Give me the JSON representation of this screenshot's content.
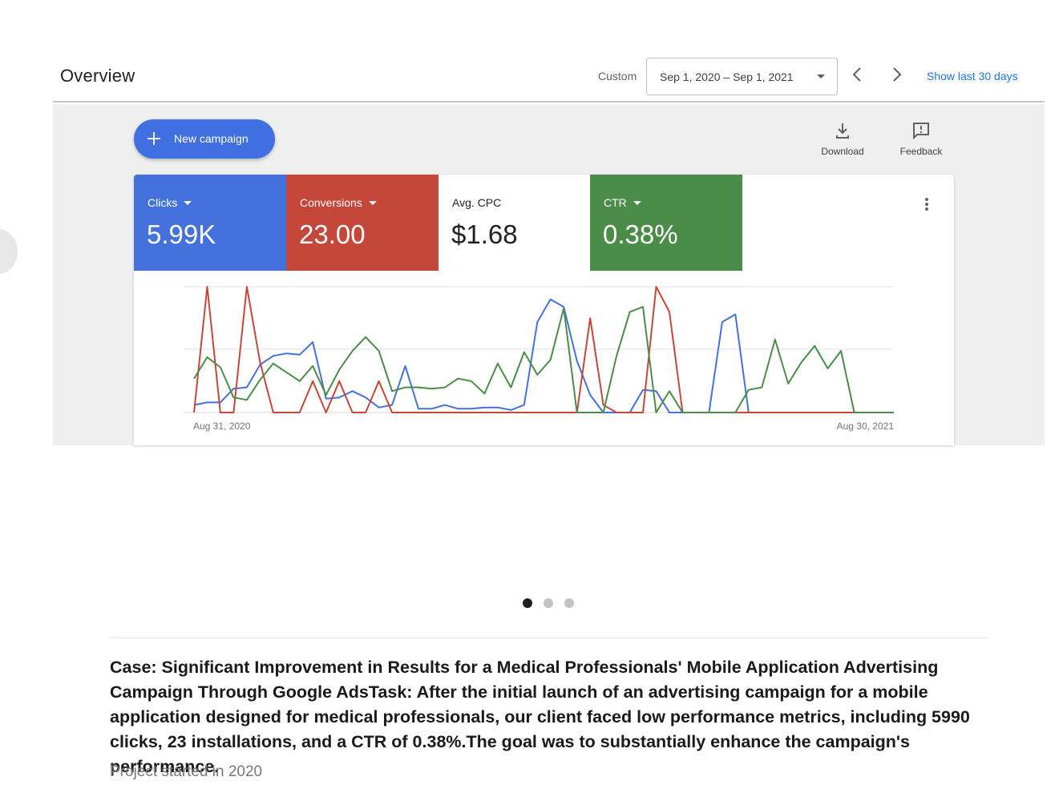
{
  "header": {
    "title": "Overview",
    "custom_label": "Custom",
    "date_range": "Sep 1, 2020 – Sep 1, 2021",
    "show_last_label": "Show last 30 days"
  },
  "toolbar": {
    "new_campaign_label": "New campaign",
    "download_label": "Download",
    "feedback_label": "Feedback"
  },
  "metrics": [
    {
      "label": "Clicks",
      "value": "5.99K",
      "color": "#4472dc"
    },
    {
      "label": "Conversions",
      "value": "23.00",
      "color": "#c5473a"
    },
    {
      "label": "Avg. CPC",
      "value": "$1.68",
      "color": "#ffffff"
    },
    {
      "label": "CTR",
      "value": "0.38%",
      "color": "#4a8c48"
    }
  ],
  "chart_data": {
    "type": "line",
    "x_start_label": "Aug 31, 2020",
    "x_end_label": "Aug 30, 2021",
    "y_range": [
      0,
      100
    ],
    "grid": "horizontal",
    "series": [
      {
        "color": "#4472dc",
        "values": [
          6,
          8,
          8,
          19,
          20,
          38,
          45,
          47,
          46,
          56,
          11,
          12,
          17,
          12,
          4,
          6,
          37,
          3,
          3,
          6,
          3,
          3,
          4,
          4,
          2,
          6,
          72,
          90,
          84,
          41,
          14,
          0,
          0,
          0,
          18,
          17,
          0,
          0,
          0,
          0,
          72,
          78,
          0,
          0,
          0,
          0,
          0,
          0,
          0,
          0,
          0,
          0,
          0,
          0
        ]
      },
      {
        "color": "#c5473a",
        "values": [
          0,
          100,
          0,
          0,
          100,
          40,
          0,
          0,
          0,
          25,
          0,
          25,
          0,
          0,
          25,
          0,
          0,
          0,
          0,
          0,
          0,
          0,
          0,
          0,
          0,
          0,
          0,
          0,
          0,
          0,
          75,
          6,
          0,
          0,
          0,
          100,
          80,
          0,
          0,
          0,
          0,
          0,
          0,
          0,
          0,
          0,
          0,
          0,
          0,
          0,
          0,
          0,
          0,
          0
        ]
      },
      {
        "color": "#4a8c48",
        "values": [
          27,
          44,
          36,
          12,
          10,
          26,
          39,
          32,
          25,
          37,
          14,
          34,
          49,
          60,
          49,
          17,
          20,
          20,
          19,
          20,
          27,
          25,
          15,
          39,
          20,
          48,
          30,
          42,
          83,
          0,
          0,
          0,
          45,
          80,
          84,
          0,
          17,
          0,
          0,
          0,
          0,
          0,
          18,
          20,
          58,
          23,
          40,
          53,
          35,
          49,
          0,
          0,
          0,
          0
        ]
      }
    ]
  },
  "pager": {
    "count": 3,
    "active_index": 0
  },
  "case": {
    "text": "Case: Significant Improvement in Results for a Medical Professionals' Mobile Application Advertising Campaign Through Google AdsTask: After the initial launch of an advertising campaign for a mobile application designed for medical professionals, our client faced low performance metrics, including 5990 clicks, 23 installations, and a CTR of 0.38%.The goal was to substantially enhance the campaign's performance.",
    "project_started": "Project started in 2020"
  }
}
